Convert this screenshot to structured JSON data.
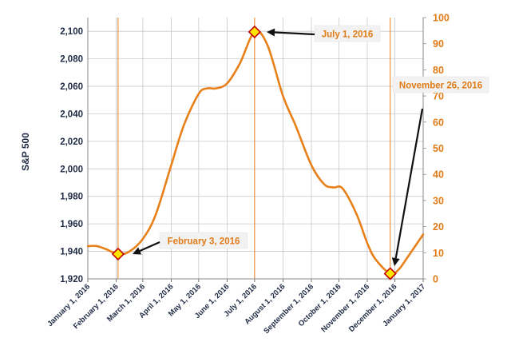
{
  "chart_data": {
    "type": "line",
    "title": "",
    "ylabel": "S&P 500",
    "y_left": {
      "lim": [
        1920,
        2110
      ],
      "ticks": [
        1920,
        1940,
        1960,
        1980,
        2000,
        2020,
        2040,
        2060,
        2080,
        2100
      ],
      "tick_labels": [
        "1,920",
        "1,940",
        "1,960",
        "1,980",
        "2,000",
        "2,020",
        "2,040",
        "2,060",
        "2,080",
        "2,100"
      ],
      "color": "#1f2a44"
    },
    "y_right": {
      "lim": [
        0,
        100
      ],
      "ticks": [
        0,
        10,
        20,
        30,
        40,
        50,
        60,
        70,
        80,
        90,
        100
      ],
      "tick_labels": [
        "0",
        "10",
        "20",
        "30",
        "40",
        "50",
        "60",
        "70",
        "80",
        "90",
        "100"
      ],
      "color": "#e07b17"
    },
    "x_tick_labels": [
      "January 1, 2016",
      "February 1, 2016",
      "March 1, 2016",
      "April 1, 2016",
      "May 1, 2016",
      "June 1, 2016",
      "July 1, 2016",
      "August 1, 2016",
      "September 1, 2016",
      "October 1, 2016",
      "November 1, 2016",
      "December 1, 2016",
      "January 1, 2017"
    ],
    "x_tick_dates": [
      "2016-01-01",
      "2016-02-01",
      "2016-03-01",
      "2016-04-01",
      "2016-05-01",
      "2016-06-01",
      "2016-07-01",
      "2016-08-01",
      "2016-09-01",
      "2016-10-01",
      "2016-11-01",
      "2016-12-01",
      "2017-01-01"
    ],
    "grid": true,
    "series": [
      {
        "name": "",
        "axis": "right",
        "color": "#e8801a",
        "points": [
          [
            "2016-01-01",
            12.5
          ],
          [
            "2016-01-10",
            12.6
          ],
          [
            "2016-01-20",
            11.5
          ],
          [
            "2016-02-03",
            9.5
          ],
          [
            "2016-02-15",
            10.4
          ],
          [
            "2016-03-01",
            15.3
          ],
          [
            "2016-03-15",
            24.5
          ],
          [
            "2016-04-01",
            43.5
          ],
          [
            "2016-04-15",
            59.0
          ],
          [
            "2016-05-01",
            70.8
          ],
          [
            "2016-05-10",
            72.9
          ],
          [
            "2016-05-20",
            72.9
          ],
          [
            "2016-06-01",
            74.8
          ],
          [
            "2016-06-15",
            82.5
          ],
          [
            "2016-07-01",
            94.5
          ],
          [
            "2016-07-15",
            89.5
          ],
          [
            "2016-08-01",
            70.0
          ],
          [
            "2016-08-15",
            58.5
          ],
          [
            "2016-09-01",
            43.5
          ],
          [
            "2016-09-15",
            36.2
          ],
          [
            "2016-09-25",
            35.0
          ],
          [
            "2016-10-05",
            34.6
          ],
          [
            "2016-10-20",
            25.0
          ],
          [
            "2016-11-01",
            13.7
          ],
          [
            "2016-11-10",
            7.5
          ],
          [
            "2016-11-26",
            2.0
          ],
          [
            "2016-12-05",
            3.5
          ],
          [
            "2016-12-15",
            8.3
          ],
          [
            "2017-01-01",
            17.0
          ]
        ]
      }
    ],
    "markers": [
      {
        "date": "2016-02-03",
        "value": 9.5
      },
      {
        "date": "2016-07-01",
        "value": 94.5
      },
      {
        "date": "2016-11-26",
        "value": 2.0
      }
    ],
    "vlines": [
      "2016-02-03",
      "2016-07-01",
      "2016-11-26"
    ],
    "annotations": [
      {
        "text": "February 3, 2016",
        "date": "2016-02-03",
        "value": 9.5
      },
      {
        "text": "July 1, 2016",
        "date": "2016-07-01",
        "value": 94.5
      },
      {
        "text": "November 26, 2016",
        "date": "2016-11-26",
        "value": 2.0
      }
    ]
  }
}
